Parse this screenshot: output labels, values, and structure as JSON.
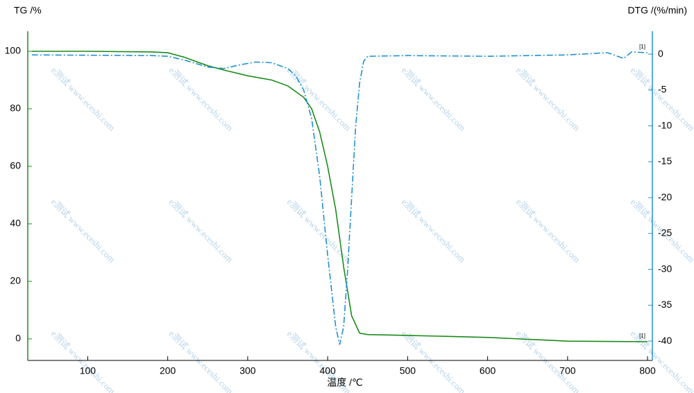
{
  "chart_data": {
    "type": "line",
    "y_label": "TG /%",
    "y2_label": "DTG /(%/min)",
    "x_label": "温度 /℃",
    "watermark": "e测试 www.eceshi.com",
    "xlim": [
      25,
      806
    ],
    "xticks": [
      100,
      200,
      300,
      400,
      500,
      600,
      700,
      800
    ],
    "ylim": [
      -7.5,
      107
    ],
    "yticks": [
      0,
      20,
      40,
      60,
      80,
      100
    ],
    "y2lim": [
      -42.7,
      3.2
    ],
    "y2ticks": [
      0,
      -5,
      -10,
      -15,
      -20,
      -25,
      -30,
      -35,
      -40
    ],
    "y_color": "#1a8a1a",
    "y2_color": "#2090d0",
    "series": [
      {
        "name": "TG",
        "color": "#1a8a1a",
        "dash": false,
        "end_label": "[1]",
        "x": [
          30,
          100,
          180,
          200,
          220,
          250,
          270,
          300,
          330,
          350,
          370,
          380,
          390,
          400,
          410,
          420,
          430,
          440,
          450,
          500,
          600,
          700,
          800
        ],
        "values": [
          100,
          100,
          99.8,
          99.5,
          98,
          95,
          93.5,
          91.5,
          90,
          88,
          84,
          80,
          72,
          60,
          45,
          25,
          8,
          2,
          1.5,
          1.2,
          0.5,
          -0.8,
          -1.0
        ]
      },
      {
        "name": "DTG",
        "color": "#2090d0",
        "dash": true,
        "axis": "y2",
        "end_label": "[1]",
        "x": [
          30,
          180,
          200,
          220,
          250,
          270,
          290,
          310,
          330,
          350,
          360,
          370,
          380,
          390,
          400,
          410,
          415,
          420,
          425,
          430,
          435,
          440,
          445,
          450,
          500,
          600,
          700,
          750,
          770,
          780,
          800
        ],
        "values": [
          -0.1,
          -0.2,
          -0.3,
          -0.8,
          -1.8,
          -2,
          -1.5,
          -1.1,
          -1.2,
          -2,
          -3,
          -5,
          -9,
          -17,
          -28,
          -38,
          -40.5,
          -38,
          -30,
          -20,
          -10,
          -4,
          -1,
          -0.3,
          -0.2,
          -0.3,
          -0.1,
          0.2,
          -0.6,
          0.3,
          0.2
        ]
      }
    ]
  }
}
